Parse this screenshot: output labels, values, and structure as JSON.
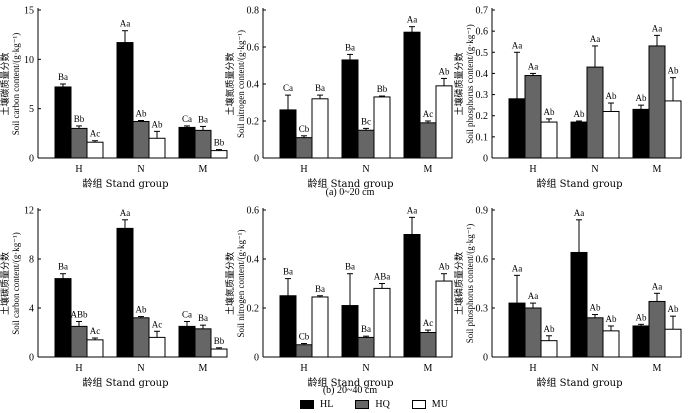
{
  "series_names": [
    "HL",
    "HQ",
    "MU"
  ],
  "series_colors": [
    "#000000",
    "#666666",
    "#ffffff"
  ],
  "group_label": "龄组 Stand group",
  "chart_data": [
    {
      "type": "bar",
      "title": "",
      "categories": [
        "H",
        "N",
        "M"
      ],
      "ylabel_cn": "土壤碳质量分数",
      "ylabel": "Soil carbon content/(g·kg⁻¹)",
      "ylim": [
        0,
        15
      ],
      "yticks": [
        "0",
        "5",
        "10",
        "15"
      ],
      "series": [
        {
          "name": "HL",
          "values": [
            7.2,
            11.7,
            3.1
          ],
          "errors": [
            0.3,
            1.2,
            0.15
          ],
          "letters": [
            "Ba",
            "Aa",
            "Ca"
          ]
        },
        {
          "name": "HQ",
          "values": [
            3.0,
            3.7,
            2.8
          ],
          "errors": [
            0.25,
            0.1,
            0.4
          ],
          "letters": [
            "Bb",
            "Ab",
            "Ba"
          ]
        },
        {
          "name": "MU",
          "values": [
            1.6,
            2.0,
            0.75
          ],
          "errors": [
            0.15,
            0.7,
            0.1
          ],
          "letters": [
            "Ac",
            "Ab",
            "Bb"
          ]
        }
      ]
    },
    {
      "type": "bar",
      "title": "",
      "categories": [
        "H",
        "N",
        "M"
      ],
      "ylabel_cn": "土壤氮质量分数",
      "ylabel": "Soil nitrogen content/(g·kg⁻¹)",
      "ylim": [
        0,
        0.8
      ],
      "yticks": [
        "0",
        "0.2",
        "0.4",
        "0.6",
        "0.8"
      ],
      "series": [
        {
          "name": "HL",
          "values": [
            0.26,
            0.53,
            0.68
          ],
          "errors": [
            0.08,
            0.03,
            0.03
          ],
          "letters": [
            "Ca",
            "Ba",
            "Aa"
          ]
        },
        {
          "name": "HQ",
          "values": [
            0.11,
            0.15,
            0.19
          ],
          "errors": [
            0.01,
            0.01,
            0.01
          ],
          "letters": [
            "Cb",
            "Bc",
            "Ac"
          ]
        },
        {
          "name": "MU",
          "values": [
            0.32,
            0.33,
            0.39
          ],
          "errors": [
            0.02,
            0.005,
            0.04
          ],
          "letters": [
            "Ba",
            "Bb",
            "Ab"
          ]
        }
      ]
    },
    {
      "type": "bar",
      "title": "",
      "categories": [
        "H",
        "N",
        "M"
      ],
      "ylabel_cn": "土壤磷质量分数",
      "ylabel": "Soil phosphorus content/(g·kg⁻¹)",
      "ylim": [
        0,
        0.7
      ],
      "yticks": [
        "0",
        "0.1",
        "0.2",
        "0.3",
        "0.4",
        "0.5",
        "0.6",
        "0.7"
      ],
      "series": [
        {
          "name": "HL",
          "values": [
            0.28,
            0.17,
            0.23
          ],
          "errors": [
            0.22,
            0.005,
            0.02
          ],
          "letters": [
            "Aa",
            "Ab",
            "Ab"
          ]
        },
        {
          "name": "HQ",
          "values": [
            0.39,
            0.43,
            0.53
          ],
          "errors": [
            0.01,
            0.1,
            0.05
          ],
          "letters": [
            "Aa",
            "Aa",
            "Aa"
          ]
        },
        {
          "name": "MU",
          "values": [
            0.17,
            0.22,
            0.27
          ],
          "errors": [
            0.015,
            0.04,
            0.11
          ],
          "letters": [
            "Ab",
            "Ab",
            "Ab"
          ]
        }
      ]
    },
    {
      "type": "bar",
      "title": "",
      "categories": [
        "H",
        "N",
        "M"
      ],
      "ylabel_cn": "土壤碳质量分数",
      "ylabel": "Soil carbon content/(g·kg⁻¹)",
      "ylim": [
        0,
        12
      ],
      "yticks": [
        "0",
        "4",
        "8",
        "12"
      ],
      "series": [
        {
          "name": "HL",
          "values": [
            6.4,
            10.5,
            2.5
          ],
          "errors": [
            0.4,
            0.7,
            0.4
          ],
          "letters": [
            "Ba",
            "Aa",
            "Ca"
          ]
        },
        {
          "name": "HQ",
          "values": [
            2.5,
            3.2,
            2.3
          ],
          "errors": [
            0.4,
            0.1,
            0.3
          ],
          "letters": [
            "ABb",
            "Ab",
            "Ba"
          ]
        },
        {
          "name": "MU",
          "values": [
            1.4,
            1.6,
            0.65
          ],
          "errors": [
            0.15,
            0.5,
            0.1
          ],
          "letters": [
            "Ac",
            "Ac",
            "Bb"
          ]
        }
      ]
    },
    {
      "type": "bar",
      "title": "",
      "categories": [
        "H",
        "N",
        "M"
      ],
      "ylabel_cn": "土壤氮质量分数",
      "ylabel": "Soil nitrogen content/(g·kg⁻¹)",
      "ylim": [
        0,
        0.6
      ],
      "yticks": [
        "0",
        "0.2",
        "0.4",
        "0.6"
      ],
      "series": [
        {
          "name": "HL",
          "values": [
            0.25,
            0.21,
            0.5
          ],
          "errors": [
            0.07,
            0.13,
            0.07
          ],
          "letters": [
            "Ba",
            "Ba",
            "Aa"
          ]
        },
        {
          "name": "HQ",
          "values": [
            0.05,
            0.08,
            0.1
          ],
          "errors": [
            0.005,
            0.005,
            0.01
          ],
          "letters": [
            "Cb",
            "Ba",
            "Ac"
          ]
        },
        {
          "name": "MU",
          "values": [
            0.245,
            0.28,
            0.31
          ],
          "errors": [
            0.005,
            0.02,
            0.03
          ],
          "letters": [
            "Ba",
            "ABa",
            "Ab"
          ]
        }
      ]
    },
    {
      "type": "bar",
      "title": "",
      "categories": [
        "H",
        "N",
        "M"
      ],
      "ylabel_cn": "土壤磷质量分数",
      "ylabel": "Soil phosphorus content/(g·kg⁻¹)",
      "ylim": [
        0,
        0.9
      ],
      "yticks": [
        "0",
        "0.3",
        "0.6",
        "0.9"
      ],
      "series": [
        {
          "name": "HL",
          "values": [
            0.33,
            0.64,
            0.19
          ],
          "errors": [
            0.17,
            0.2,
            0.01
          ],
          "letters": [
            "Aa",
            "Aa",
            "Ab"
          ]
        },
        {
          "name": "HQ",
          "values": [
            0.3,
            0.24,
            0.34
          ],
          "errors": [
            0.03,
            0.02,
            0.05
          ],
          "letters": [
            "Aa",
            "Ab",
            "Aa"
          ]
        },
        {
          "name": "MU",
          "values": [
            0.1,
            0.16,
            0.17
          ],
          "errors": [
            0.03,
            0.03,
            0.08
          ],
          "letters": [
            "Ab",
            "Ab",
            "Ab"
          ]
        }
      ]
    }
  ],
  "captions": [
    "(a) 0~20 cm",
    "(b) 20~40 cm"
  ]
}
